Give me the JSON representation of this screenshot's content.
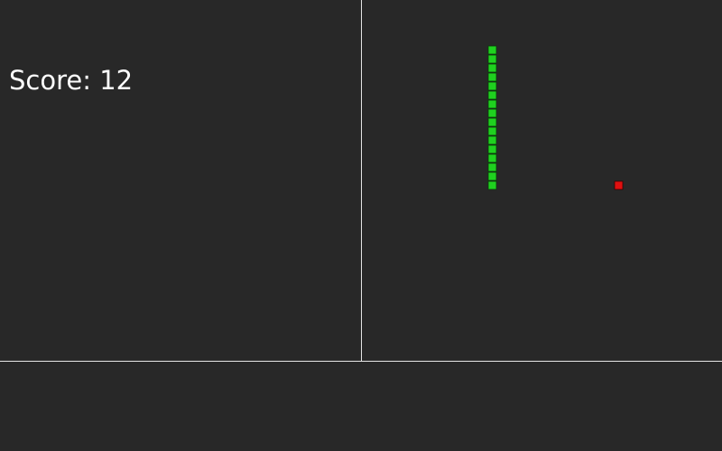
{
  "hud": {
    "score_text": "Score: 12"
  },
  "colors": {
    "background": "#282828",
    "divider": "#e6e6e6",
    "snake": "#1fd11f",
    "snake_outline": "#0a3a0a",
    "food": "#e01010",
    "food_outline": "#3a0000"
  }
}
